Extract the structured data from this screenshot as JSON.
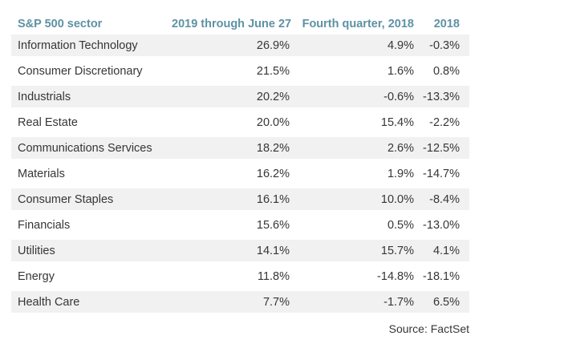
{
  "colors": {
    "header_text": "#5e92a4",
    "body_text": "#363636",
    "row_alt_bg": "#f1f1f2",
    "background": "#ffffff"
  },
  "table": {
    "headers": {
      "sector": "S&P 500 sector",
      "col_2019": "2019 through June 27",
      "col_q4": "Fourth quarter, 2018",
      "col_2018": "2018"
    },
    "rows": [
      {
        "sector": "Information Technology",
        "v2019": "26.9%",
        "q4": "4.9%",
        "v2018": "-0.3%"
      },
      {
        "sector": "Consumer Discretionary",
        "v2019": "21.5%",
        "q4": "1.6%",
        "v2018": "0.8%"
      },
      {
        "sector": "Industrials",
        "v2019": "20.2%",
        "q4": "-0.6%",
        "v2018": "-13.3%"
      },
      {
        "sector": "Real Estate",
        "v2019": "20.0%",
        "q4": "15.4%",
        "v2018": "-2.2%"
      },
      {
        "sector": "Communications Services",
        "v2019": "18.2%",
        "q4": "2.6%",
        "v2018": "-12.5%"
      },
      {
        "sector": "Materials",
        "v2019": "16.2%",
        "q4": "1.9%",
        "v2018": "-14.7%"
      },
      {
        "sector": "Consumer Staples",
        "v2019": "16.1%",
        "q4": "10.0%",
        "v2018": "-8.4%"
      },
      {
        "sector": "Financials",
        "v2019": "15.6%",
        "q4": "0.5%",
        "v2018": "-13.0%"
      },
      {
        "sector": "Utilities",
        "v2019": "14.1%",
        "q4": "15.7%",
        "v2018": "4.1%"
      },
      {
        "sector": "Energy",
        "v2019": "11.8%",
        "q4": "-14.8%",
        "v2018": "-18.1%"
      },
      {
        "sector": "Health Care",
        "v2019": "7.7%",
        "q4": "-1.7%",
        "v2018": "6.5%"
      }
    ],
    "source": "Source: FactSet"
  },
  "chart_data": {
    "type": "table",
    "columns": [
      "S&P 500 sector",
      "2019 through June 27",
      "Fourth quarter, 2018",
      "2018"
    ],
    "units": "%",
    "rows": [
      [
        "Information Technology",
        26.9,
        4.9,
        -0.3
      ],
      [
        "Consumer Discretionary",
        21.5,
        1.6,
        0.8
      ],
      [
        "Industrials",
        20.2,
        -0.6,
        -13.3
      ],
      [
        "Real Estate",
        20.0,
        15.4,
        -2.2
      ],
      [
        "Communications Services",
        18.2,
        2.6,
        -12.5
      ],
      [
        "Materials",
        16.2,
        1.9,
        -14.7
      ],
      [
        "Consumer Staples",
        16.1,
        10.0,
        -8.4
      ],
      [
        "Financials",
        15.6,
        0.5,
        -13.0
      ],
      [
        "Utilities",
        14.1,
        15.7,
        4.1
      ],
      [
        "Energy",
        11.8,
        -14.8,
        -18.1
      ],
      [
        "Health Care",
        7.7,
        -1.7,
        6.5
      ]
    ],
    "source": "Source: FactSet",
    "layout": {
      "alternating_row_shading": true,
      "numeric_columns_right_aligned": true
    }
  }
}
